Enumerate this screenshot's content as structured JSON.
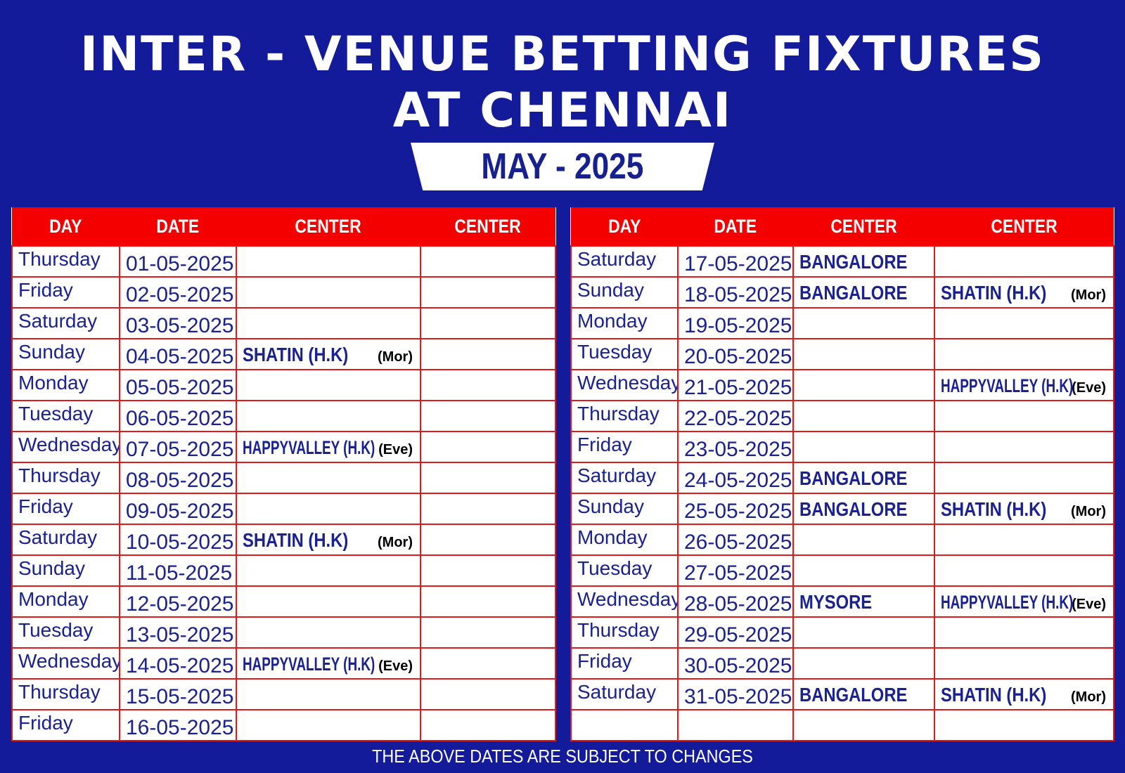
{
  "title": {
    "line1": "INTER - VENUE BETTING FIXTURES",
    "line2": "AT CHENNAI",
    "month": "MAY - 2025"
  },
  "headers": [
    "DAY",
    "DATE",
    "CENTER",
    "CENTER"
  ],
  "colors": {
    "background": "#141b9b",
    "header": "#f40000",
    "text": "#1a2190",
    "grid": "#e01a1a"
  },
  "left": [
    {
      "day": "Thursday",
      "date": "01-05-2025"
    },
    {
      "day": "Friday",
      "date": "02-05-2025"
    },
    {
      "day": "Saturday",
      "date": "03-05-2025"
    },
    {
      "day": "Sunday",
      "date": "04-05-2025",
      "c1": "SHATIN (H.K)",
      "c1tag": "(Mor)"
    },
    {
      "day": "Monday",
      "date": "05-05-2025"
    },
    {
      "day": "Tuesday",
      "date": "06-05-2025"
    },
    {
      "day": "Wednesday",
      "date": "07-05-2025",
      "c1": "HAPPYVALLEY (H.K)",
      "c1tag": "(Eve)"
    },
    {
      "day": "Thursday",
      "date": "08-05-2025"
    },
    {
      "day": "Friday",
      "date": "09-05-2025"
    },
    {
      "day": "Saturday",
      "date": "10-05-2025",
      "c1": "SHATIN (H.K)",
      "c1tag": "(Mor)"
    },
    {
      "day": "Sunday",
      "date": "11-05-2025"
    },
    {
      "day": "Monday",
      "date": "12-05-2025"
    },
    {
      "day": "Tuesday",
      "date": "13-05-2025"
    },
    {
      "day": "Wednesday",
      "date": "14-05-2025",
      "c1": "HAPPYVALLEY (H.K)",
      "c1tag": "(Eve)"
    },
    {
      "day": "Thursday",
      "date": "15-05-2025"
    },
    {
      "day": "Friday",
      "date": "16-05-2025"
    }
  ],
  "right": [
    {
      "day": "Saturday",
      "date": "17-05-2025",
      "c1": "BANGALORE"
    },
    {
      "day": "Sunday",
      "date": "18-05-2025",
      "c1": "BANGALORE",
      "c2": "SHATIN (H.K)",
      "c2tag": "(Mor)"
    },
    {
      "day": "Monday",
      "date": "19-05-2025"
    },
    {
      "day": "Tuesday",
      "date": "20-05-2025"
    },
    {
      "day": "Wednesday",
      "date": "21-05-2025",
      "c2": "HAPPYVALLEY (H.K)",
      "c2tag": "(Eve)"
    },
    {
      "day": "Thursday",
      "date": "22-05-2025"
    },
    {
      "day": "Friday",
      "date": "23-05-2025"
    },
    {
      "day": "Saturday",
      "date": "24-05-2025",
      "c1": "BANGALORE"
    },
    {
      "day": "Sunday",
      "date": "25-05-2025",
      "c1": "BANGALORE",
      "c2": "SHATIN (H.K)",
      "c2tag": "(Mor)"
    },
    {
      "day": "Monday",
      "date": "26-05-2025"
    },
    {
      "day": "Tuesday",
      "date": "27-05-2025"
    },
    {
      "day": "Wednesday",
      "date": "28-05-2025",
      "c1": "MYSORE",
      "c2": "HAPPYVALLEY (H.K)",
      "c2tag": "(Eve)"
    },
    {
      "day": "Thursday",
      "date": "29-05-2025"
    },
    {
      "day": "Friday",
      "date": "30-05-2025"
    },
    {
      "day": "Saturday",
      "date": "31-05-2025",
      "c1": "BANGALORE",
      "c2": "SHATIN (H.K)",
      "c2tag": "(Mor)"
    },
    {}
  ],
  "footer": "THE ABOVE DATES ARE SUBJECT TO CHANGES"
}
